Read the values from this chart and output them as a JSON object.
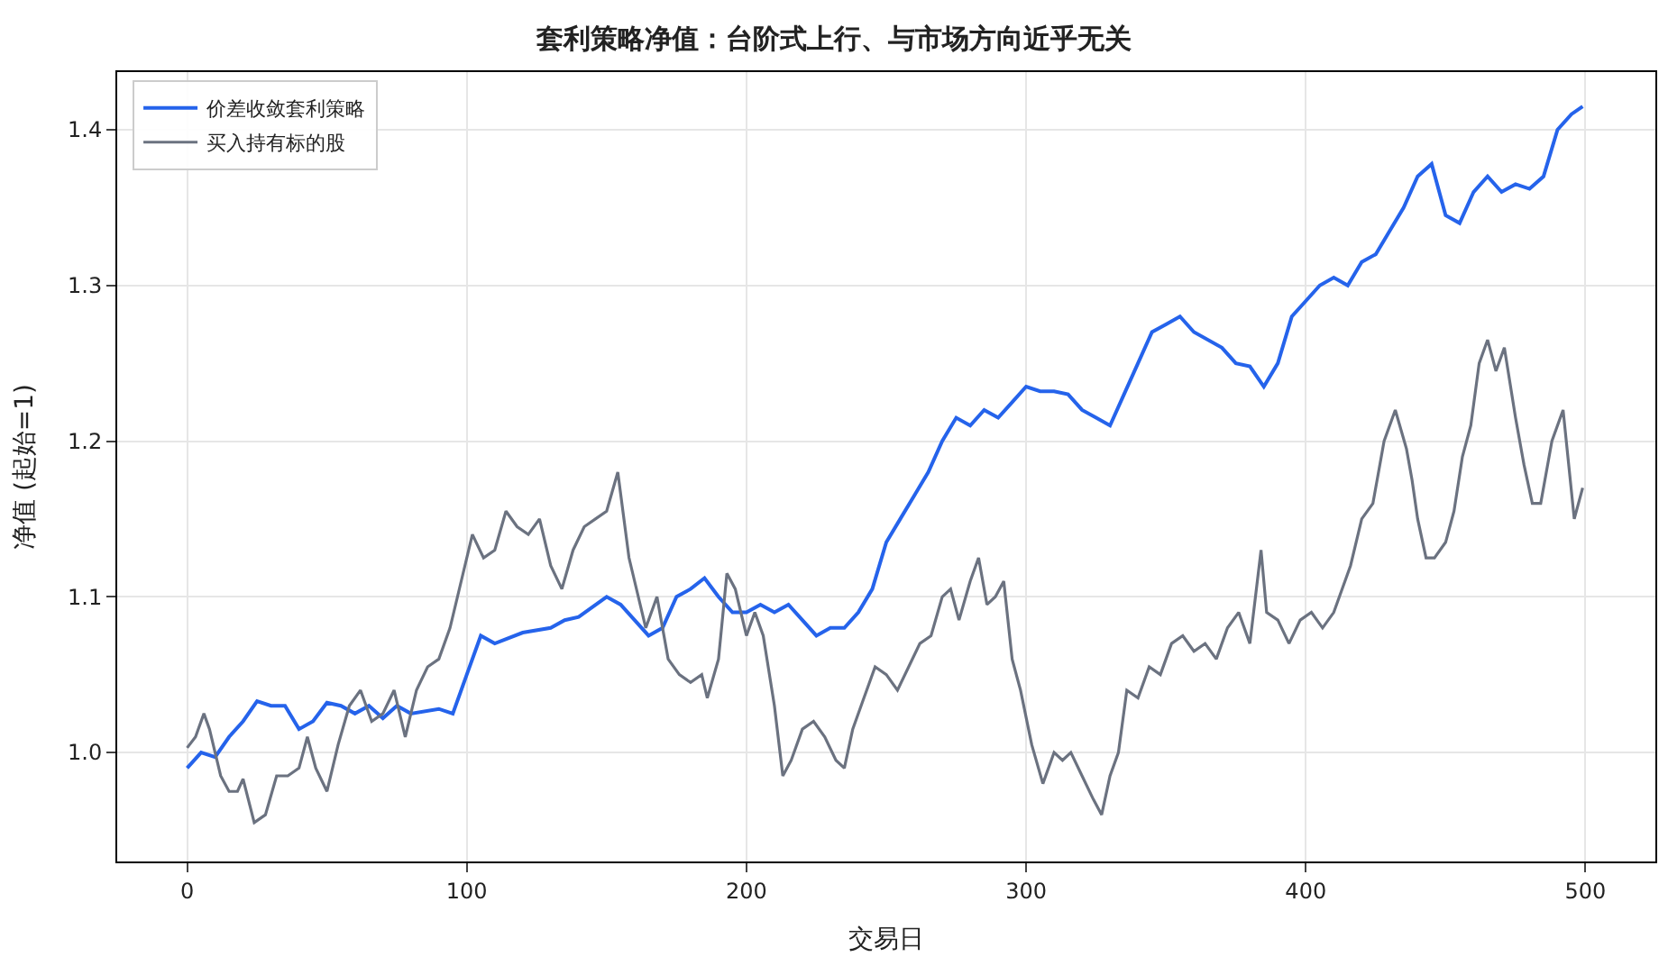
{
  "chart_data": {
    "type": "line",
    "title": "套利策略净值：台阶式上行、与市场方向近乎无关",
    "xlabel": "交易日",
    "ylabel": "净值 (起始=1)",
    "xlim": [
      -25,
      525
    ],
    "xticks": [
      0,
      100,
      200,
      300,
      400,
      500
    ],
    "ylim": [
      0.93,
      1.437
    ],
    "yticks": [
      {
        "value": 1.0,
        "label": "1.0"
      },
      {
        "value": 1.1,
        "label": "1.1"
      },
      {
        "value": 1.2,
        "label": "1.2"
      },
      {
        "value": 1.3,
        "label": "1.3"
      },
      {
        "value": 1.4,
        "label": "1.4"
      }
    ],
    "grid": true,
    "legend": "top left",
    "line_style": "solid",
    "marker": "none",
    "series": [
      {
        "name": "价差收敛套利策略",
        "color": "#2563eb",
        "x": [
          0,
          5,
          10,
          15,
          20,
          25,
          30,
          35,
          40,
          45,
          50,
          55,
          60,
          65,
          70,
          75,
          80,
          90,
          95,
          100,
          105,
          110,
          120,
          130,
          135,
          140,
          150,
          155,
          160,
          165,
          170,
          175,
          180,
          185,
          190,
          195,
          200,
          205,
          210,
          215,
          220,
          225,
          230,
          235,
          240,
          245,
          250,
          255,
          260,
          265,
          270,
          275,
          280,
          285,
          290,
          295,
          300,
          305,
          310,
          315,
          320,
          325,
          330,
          335,
          340,
          345,
          350,
          355,
          360,
          370,
          375,
          380,
          385,
          390,
          395,
          400,
          405,
          410,
          415,
          420,
          425,
          430,
          435,
          440,
          445,
          450,
          455,
          460,
          465,
          470,
          475,
          480,
          485,
          490,
          495,
          499
        ],
        "values": [
          0.99,
          1.0,
          0.997,
          1.01,
          1.02,
          1.033,
          1.03,
          1.03,
          1.015,
          1.02,
          1.032,
          1.03,
          1.025,
          1.03,
          1.022,
          1.03,
          1.025,
          1.028,
          1.025,
          1.05,
          1.075,
          1.07,
          1.077,
          1.08,
          1.085,
          1.087,
          1.1,
          1.095,
          1.085,
          1.075,
          1.08,
          1.1,
          1.105,
          1.112,
          1.1,
          1.09,
          1.09,
          1.095,
          1.09,
          1.095,
          1.085,
          1.075,
          1.08,
          1.08,
          1.09,
          1.105,
          1.135,
          1.15,
          1.165,
          1.18,
          1.2,
          1.215,
          1.21,
          1.22,
          1.215,
          1.225,
          1.235,
          1.232,
          1.232,
          1.23,
          1.22,
          1.215,
          1.21,
          1.23,
          1.25,
          1.27,
          1.275,
          1.28,
          1.27,
          1.26,
          1.25,
          1.248,
          1.235,
          1.25,
          1.28,
          1.29,
          1.3,
          1.305,
          1.3,
          1.315,
          1.32,
          1.335,
          1.35,
          1.37,
          1.378,
          1.345,
          1.34,
          1.36,
          1.37,
          1.36,
          1.365,
          1.362,
          1.37,
          1.4,
          1.41,
          1.415
        ]
      },
      {
        "name": "买入持有标的股",
        "color": "#6b7280",
        "x": [
          0,
          3,
          6,
          8,
          12,
          15,
          18,
          20,
          24,
          28,
          32,
          36,
          40,
          43,
          46,
          50,
          54,
          58,
          62,
          66,
          70,
          74,
          78,
          82,
          86,
          90,
          94,
          98,
          102,
          106,
          110,
          114,
          118,
          122,
          126,
          130,
          134,
          138,
          142,
          146,
          150,
          154,
          158,
          160,
          164,
          168,
          172,
          176,
          180,
          184,
          186,
          190,
          193,
          196,
          200,
          203,
          206,
          210,
          213,
          216,
          220,
          224,
          228,
          232,
          235,
          238,
          242,
          246,
          250,
          254,
          258,
          262,
          266,
          270,
          273,
          276,
          280,
          283,
          286,
          289,
          292,
          295,
          298,
          302,
          306,
          310,
          313,
          316,
          320,
          324,
          327,
          330,
          333,
          336,
          340,
          344,
          348,
          352,
          356,
          360,
          364,
          368,
          372,
          376,
          380,
          384,
          386,
          390,
          394,
          398,
          402,
          406,
          410,
          412,
          416,
          420,
          424,
          428,
          432,
          436,
          438,
          440,
          443,
          446,
          450,
          453,
          456,
          459,
          462,
          465,
          468,
          471,
          475,
          478,
          481,
          484,
          488,
          492,
          496,
          499
        ],
        "values": [
          1.003,
          1.01,
          1.025,
          1.015,
          0.985,
          0.975,
          0.975,
          0.983,
          0.955,
          0.96,
          0.985,
          0.985,
          0.99,
          1.01,
          0.99,
          0.975,
          1.005,
          1.03,
          1.04,
          1.02,
          1.025,
          1.04,
          1.01,
          1.04,
          1.055,
          1.06,
          1.08,
          1.11,
          1.14,
          1.125,
          1.13,
          1.155,
          1.145,
          1.14,
          1.15,
          1.12,
          1.105,
          1.13,
          1.145,
          1.15,
          1.155,
          1.18,
          1.125,
          1.11,
          1.08,
          1.1,
          1.06,
          1.05,
          1.045,
          1.05,
          1.035,
          1.06,
          1.115,
          1.105,
          1.075,
          1.09,
          1.075,
          1.03,
          0.985,
          0.995,
          1.015,
          1.02,
          1.01,
          0.995,
          0.99,
          1.015,
          1.035,
          1.055,
          1.05,
          1.04,
          1.055,
          1.07,
          1.075,
          1.1,
          1.105,
          1.085,
          1.11,
          1.125,
          1.095,
          1.1,
          1.11,
          1.06,
          1.04,
          1.005,
          0.98,
          1.0,
          0.995,
          1.0,
          0.985,
          0.97,
          0.96,
          0.985,
          1.0,
          1.04,
          1.035,
          1.055,
          1.05,
          1.07,
          1.075,
          1.065,
          1.07,
          1.06,
          1.08,
          1.09,
          1.07,
          1.13,
          1.09,
          1.085,
          1.07,
          1.085,
          1.09,
          1.08,
          1.09,
          1.1,
          1.12,
          1.15,
          1.16,
          1.2,
          1.22,
          1.195,
          1.175,
          1.15,
          1.125,
          1.125,
          1.135,
          1.155,
          1.19,
          1.21,
          1.25,
          1.265,
          1.245,
          1.26,
          1.215,
          1.185,
          1.16,
          1.16,
          1.2,
          1.22,
          1.15,
          1.17
        ]
      }
    ]
  }
}
